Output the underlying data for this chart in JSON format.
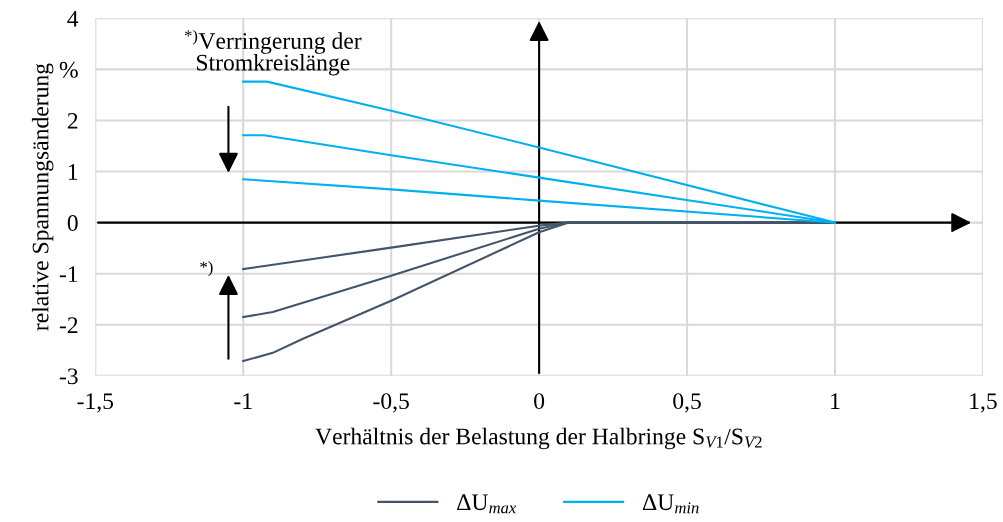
{
  "chart_data": {
    "type": "line",
    "xlabel": "Verhältnis der Belastung der Halbringe S$_{V1}$/S$_{V2}$",
    "ylabel": "relative Spannungsänderung",
    "xlim": [
      -1.5,
      1.5
    ],
    "ylim": [
      -3,
      4
    ],
    "xticks": [
      {
        "value": -1.5,
        "label": "-1,5"
      },
      -1,
      {
        "value": -0.5,
        "label": "-0,5"
      },
      0,
      {
        "value": 0.5,
        "label": "0,5"
      },
      1,
      {
        "value": 1.5,
        "label": "1,5"
      }
    ],
    "yticks": [
      -3,
      -2,
      -1,
      0,
      1,
      2,
      {
        "value": 3,
        "label": "%"
      },
      4
    ],
    "grid": true,
    "legend": "bottom",
    "line_style": "solid",
    "marker": "none",
    "series": [
      {
        "name": "ΔU$_{max}$",
        "color": "#44546a",
        "x": [
          -1.0,
          -0.5,
          0,
          0.1,
          1.0
        ],
        "values": [
          -0.91,
          -0.49,
          -0.06,
          0,
          0
        ]
      },
      {
        "color": "#44546a",
        "x": [
          -1.0,
          -0.9,
          -0.5,
          0,
          0.1,
          1.0
        ],
        "values": [
          -1.85,
          -1.75,
          -1.04,
          -0.12,
          0,
          0
        ]
      },
      {
        "color": "#44546a",
        "x": [
          -1.0,
          -0.9,
          -0.8,
          -0.5,
          0,
          0.1,
          1.0
        ],
        "values": [
          -2.71,
          -2.55,
          -2.28,
          -1.53,
          -0.19,
          0,
          0
        ]
      },
      {
        "name": "ΔU$_{min}$",
        "color": "#00b0f0",
        "x": [
          -1.0,
          -0.92,
          -0.5,
          0,
          1.0
        ],
        "values": [
          2.76,
          2.76,
          2.19,
          1.47,
          0
        ]
      },
      {
        "color": "#00b0f0",
        "x": [
          -1.0,
          -0.93,
          -0.5,
          0,
          1.0
        ],
        "values": [
          1.71,
          1.71,
          1.32,
          0.88,
          0
        ]
      },
      {
        "color": "#00b0f0",
        "x": [
          -1.0,
          -0.5,
          0,
          1.0
        ],
        "values": [
          0.85,
          0.65,
          0.43,
          0
        ]
      }
    ],
    "annotations": [
      "$^{*)}$Verringerung der\nStromkreislänge",
      "*)"
    ]
  }
}
